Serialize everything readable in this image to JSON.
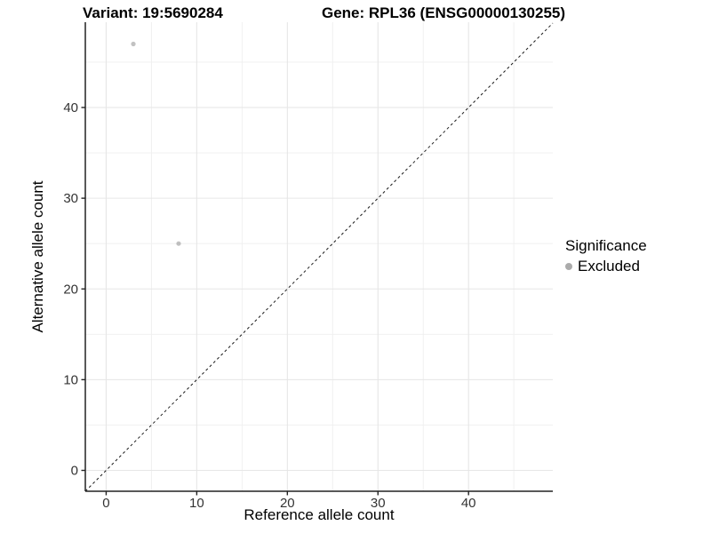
{
  "chart_data": {
    "type": "scatter",
    "title_left": "Variant: 19:5690284",
    "title_right": "Gene: RPL36 (ENSG00000130255)",
    "xlabel": "Reference allele count",
    "ylabel": "Alternative allele count",
    "xlim": [
      -2.3,
      49.3
    ],
    "ylim": [
      -2.3,
      49.4
    ],
    "x_ticks": [
      0,
      10,
      20,
      30,
      40
    ],
    "y_ticks": [
      0,
      10,
      20,
      30,
      40
    ],
    "x_minor_ticks": [
      5,
      15,
      25,
      35,
      45
    ],
    "y_minor_ticks": [
      5,
      15,
      25,
      35,
      45
    ],
    "grid": true,
    "points": [
      {
        "x": 3,
        "y": 47,
        "significance": "Excluded"
      },
      {
        "x": 8,
        "y": 25,
        "significance": "Excluded"
      }
    ],
    "identity_line": {
      "type": "dashed",
      "equation": "y = x"
    },
    "legend": {
      "title": "Significance",
      "position": "right",
      "items": [
        {
          "label": "Excluded",
          "color": "#ababab"
        }
      ]
    },
    "style": {
      "background": "#ffffff",
      "point_color": "#787878",
      "point_alpha": 0.45,
      "major_grid_color": "#e6e6e6",
      "minor_grid_color": "#efefef",
      "axis_line_color": "#222222",
      "tick_label_color": "#333333",
      "dashed_line_color": "#1a1a1a"
    }
  }
}
